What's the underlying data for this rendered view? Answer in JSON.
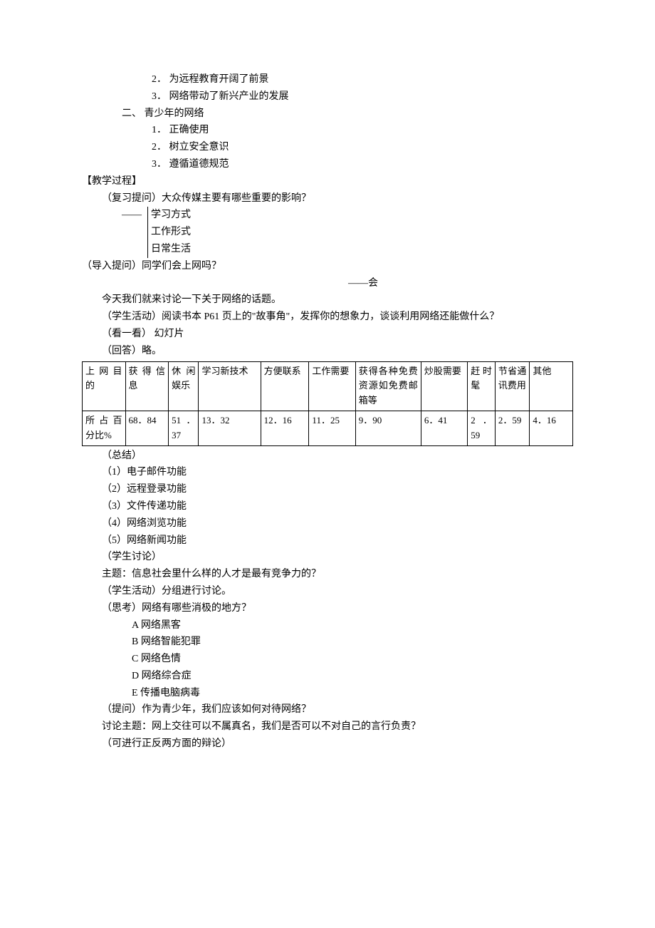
{
  "items_top": [
    "2． 为远程教育开阔了前景",
    "3． 网络带动了新兴产业的发展"
  ],
  "section2_title": "二、 青少年的网络",
  "section2_items": [
    "1． 正确使用",
    "2． 树立安全意识",
    "3． 遵循道德规范"
  ],
  "process_title": "【教学过程】",
  "review_q": "（复习提问）大众传媒主要有哪些重要的影响？",
  "bracket_prefix": "——",
  "bracket_items": [
    "学习方式",
    "工作形式",
    "日常生活"
  ],
  "intro_q": "（导入提问）同学们会上网吗？",
  "intro_a": "——会",
  "today": "今天我们就来讨论一下关于网络的话题。",
  "activity1": "（学生活动）阅读书本 P61 页上的\"故事角\"，发挥你的想象力，谈谈利用网络还能做什么？",
  "look": "（看一看） 幻灯片",
  "answer": "（回答）略。",
  "table": {
    "row1": [
      "上网目的",
      "获得信息",
      "休闲娱乐",
      "学习新技术",
      "方便联系",
      "工作需要",
      "获得各种免费资源如免费邮箱等",
      "炒股需要",
      "赶时髦",
      "节省通讯费用",
      "其他"
    ],
    "row2": [
      "所占百分比%",
      "68．84",
      "51．37",
      "13．32",
      "12．16",
      "11．25",
      "9．90",
      "6．41",
      "2．59",
      "2．59",
      "4．16"
    ]
  },
  "summary_label": "（总结）",
  "summary_items": [
    "（1）电子邮件功能",
    "（2）远程登录功能",
    "（3）文件传递功能",
    "（4）网络浏览功能",
    "（5）网络新闻功能"
  ],
  "discuss_label": "（学生讨论）",
  "discuss_topic": "  主题：信息社会里什么样的人才是最有竞争力的？",
  "activity2": "（学生活动）分组进行讨论。",
  "think_label": "（思考）网络有哪些消极的地方？",
  "think_items": [
    "A  网络黑客",
    "B  网络智能犯罪",
    "C  网络色情",
    "D  网络综合症",
    "E  传播电脑病毒"
  ],
  "question": "（提问）作为青少年，我们应该如何对待网络？",
  "debate_topic": "  讨论主题：网上交往可以不属真名，我们是否可以不对自己的言行负责？",
  "debate_note": "（可进行正反两方面的辩论）"
}
